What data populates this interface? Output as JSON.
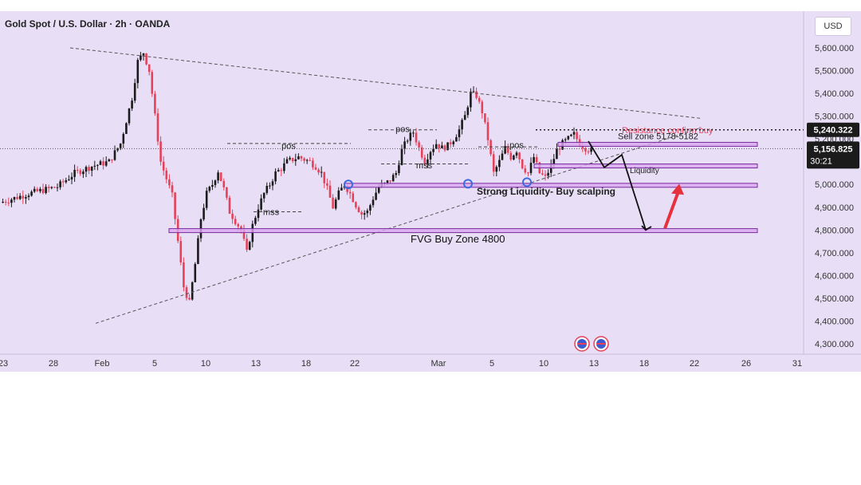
{
  "header": {
    "symbol_title": "Gold Spot / U.S. Dollar · 2h · OANDA",
    "currency": "USD"
  },
  "price_tags": {
    "resistance_price": "5,240.322",
    "current_price": "5,156.825",
    "countdown": "30:21"
  },
  "colors": {
    "background": "#e8dff6",
    "up_candle": "#1b1b1b",
    "down_candle": "#e5415a",
    "zone_fill": "#d9a6f0",
    "zone_border": "#7a2c9c",
    "guide_line": "#555555",
    "arrow_red": "#e8313f",
    "marker_blue": "#3c6be0"
  },
  "chart_data": {
    "type": "candlestick",
    "title": "Gold Spot / U.S. Dollar · 2h · OANDA",
    "y_unit": "USD",
    "ylim": [
      4250,
      5650
    ],
    "y_ticks": [
      "5,600.000",
      "5,500.000",
      "5,400.000",
      "5,300.000",
      "5,200.000",
      "5,100.000",
      "5,000.000",
      "4,900.000",
      "4,800.000",
      "4,700.000",
      "4,600.000",
      "4,500.000",
      "4,400.000",
      "4,300.000"
    ],
    "x_ticks": [
      "23",
      "28",
      "Feb",
      "5",
      "10",
      "13",
      "18",
      "22",
      "Mar",
      "5",
      "10",
      "13",
      "18",
      "22",
      "26",
      "31"
    ],
    "price_path": [
      [
        0,
        4920
      ],
      [
        5,
        4960
      ],
      [
        10,
        4990
      ],
      [
        13,
        5050
      ],
      [
        16,
        5080
      ],
      [
        19,
        5100
      ],
      [
        21,
        5180
      ],
      [
        22,
        5280
      ],
      [
        23,
        5380
      ],
      [
        24,
        5540
      ],
      [
        25,
        5580
      ],
      [
        26,
        5500
      ],
      [
        27,
        5300
      ],
      [
        28,
        5100
      ],
      [
        30,
        4950
      ],
      [
        31,
        4750
      ],
      [
        32,
        4550
      ],
      [
        33,
        4480
      ],
      [
        34,
        4650
      ],
      [
        35,
        4850
      ],
      [
        36,
        4960
      ],
      [
        37,
        5000
      ],
      [
        38,
        5060
      ],
      [
        39,
        4980
      ],
      [
        40,
        4880
      ],
      [
        42,
        4800
      ],
      [
        43,
        4700
      ],
      [
        44,
        4820
      ],
      [
        45,
        4900
      ],
      [
        46,
        4960
      ],
      [
        47,
        5000
      ],
      [
        48,
        5050
      ],
      [
        49,
        5070
      ],
      [
        50,
        5100
      ],
      [
        52,
        5120
      ],
      [
        54,
        5100
      ],
      [
        55,
        5080
      ],
      [
        56,
        5050
      ],
      [
        57,
        4980
      ],
      [
        58,
        4900
      ],
      [
        59,
        4960
      ],
      [
        60,
        5000
      ],
      [
        61,
        4960
      ],
      [
        62,
        4910
      ],
      [
        63,
        4870
      ],
      [
        64,
        4880
      ],
      [
        65,
        4940
      ],
      [
        66,
        4990
      ],
      [
        67,
        5000
      ],
      [
        68,
        5020
      ],
      [
        69,
        5050
      ],
      [
        70,
        5150
      ],
      [
        71,
        5200
      ],
      [
        72,
        5230
      ],
      [
        73,
        5160
      ],
      [
        74,
        5100
      ],
      [
        75,
        5150
      ],
      [
        76,
        5180
      ],
      [
        77,
        5160
      ],
      [
        78,
        5170
      ],
      [
        79,
        5200
      ],
      [
        80,
        5240
      ],
      [
        81,
        5300
      ],
      [
        82,
        5400
      ],
      [
        83,
        5390
      ],
      [
        84,
        5320
      ],
      [
        85,
        5200
      ],
      [
        86,
        5050
      ],
      [
        87,
        5100
      ],
      [
        88,
        5160
      ],
      [
        89,
        5120
      ],
      [
        90,
        5150
      ],
      [
        91,
        5080
      ],
      [
        92,
        5050
      ],
      [
        93,
        5120
      ],
      [
        94,
        5050
      ],
      [
        95,
        5030
      ],
      [
        96,
        5080
      ],
      [
        97,
        5150
      ],
      [
        98,
        5180
      ],
      [
        99,
        5200
      ],
      [
        100,
        5220
      ],
      [
        101,
        5180
      ],
      [
        102,
        5160
      ],
      [
        103,
        5150
      ]
    ],
    "zones": [
      {
        "label": "Sell zone 5178-5182",
        "low": 5168,
        "high": 5185
      },
      {
        "label": "Liquidity",
        "low": 5075,
        "high": 5090
      },
      {
        "label": "Strong Liquidity- Buy scalping",
        "low": 4993,
        "high": 5005
      },
      {
        "label": "FVG Buy Zone 4800",
        "low": 4793,
        "high": 4806
      }
    ],
    "resistance_label": "Resistance confirm buy",
    "structure_labels": [
      "pos",
      "mss",
      "pos",
      "mss",
      "pos",
      "pos"
    ],
    "flags": [
      "🇺🇸",
      "🇺🇸"
    ]
  }
}
